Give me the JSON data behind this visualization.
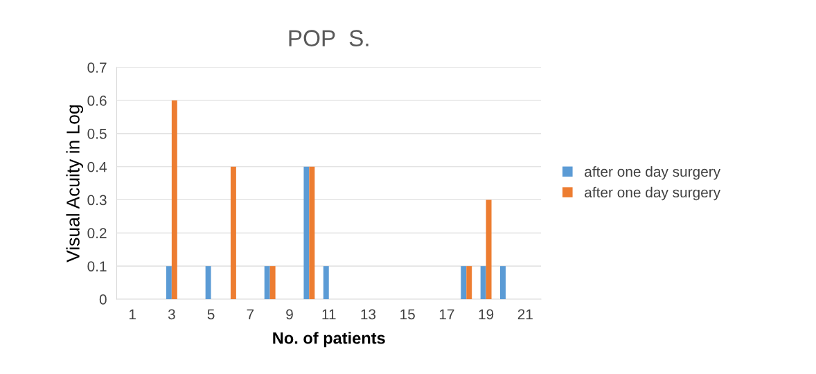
{
  "chart_data": {
    "type": "bar",
    "title": "POP  S.",
    "xlabel": "No. of patients",
    "ylabel": "Visual Acuity in Log",
    "categories": [
      "1",
      null,
      "3",
      null,
      "5",
      null,
      "7",
      null,
      "9",
      null,
      "11",
      null,
      "13",
      null,
      "15",
      null,
      "17",
      null,
      "19",
      null,
      "21"
    ],
    "series": [
      {
        "name": "after one day surgery",
        "color": "#5b9bd5",
        "values": [
          0,
          0,
          0.1,
          0,
          0.1,
          0,
          0,
          0.1,
          0,
          0.4,
          0.1,
          0,
          0,
          0,
          0,
          0,
          0,
          0.1,
          0.1,
          0.1,
          0
        ]
      },
      {
        "name": "after one day surgery",
        "color": "#ed7d31",
        "values": [
          0,
          0,
          0.6,
          0,
          0,
          0.4,
          0,
          0.1,
          0,
          0.4,
          0,
          0,
          0,
          0,
          0,
          0,
          0,
          0.1,
          0.3,
          0,
          0
        ]
      }
    ],
    "ylim": [
      0,
      0.7
    ],
    "yticks": [
      {
        "value": 0,
        "label": "0"
      },
      0.1,
      0.2,
      0.3,
      0.4,
      0.5,
      0.6,
      0.7
    ],
    "grid": "y",
    "legend": "right"
  }
}
